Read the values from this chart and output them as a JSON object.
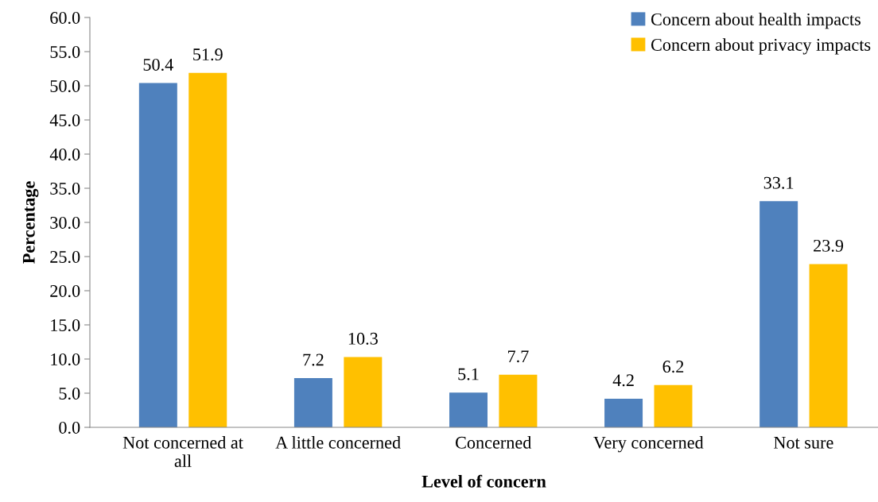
{
  "chart_data": {
    "type": "bar",
    "xlabel": "Level of concern",
    "ylabel": "Percentage",
    "categories": [
      "Not concerned at\nall",
      "A little concerned",
      "Concerned",
      "Very concerned",
      "Not sure"
    ],
    "series": [
      {
        "name": "Concern about health impacts",
        "color": "#4f81bd",
        "values": [
          50.4,
          7.2,
          5.1,
          4.2,
          33.1
        ]
      },
      {
        "name": "Concern about privacy impacts",
        "color": "#ffc000",
        "values": [
          51.9,
          10.3,
          7.7,
          6.2,
          23.9
        ]
      }
    ],
    "ylim": [
      0,
      60
    ],
    "yticks": [
      {
        "value": 0,
        "label": "0.0"
      },
      {
        "value": 5,
        "label": "5.0"
      },
      {
        "value": 10,
        "label": "10.0"
      },
      {
        "value": 15,
        "label": "15.0"
      },
      {
        "value": 20,
        "label": "20.0"
      },
      {
        "value": 25,
        "label": "25.0"
      },
      {
        "value": 30,
        "label": "30.0"
      },
      {
        "value": 35,
        "label": "35.0"
      },
      {
        "value": 40,
        "label": "40.0"
      },
      {
        "value": 45,
        "label": "45.0"
      },
      {
        "value": 50,
        "label": "50.0"
      },
      {
        "value": 55,
        "label": "55.0"
      },
      {
        "value": 60,
        "label": "60.0"
      }
    ],
    "data_labels": true,
    "grid": false,
    "legend": "top right"
  }
}
